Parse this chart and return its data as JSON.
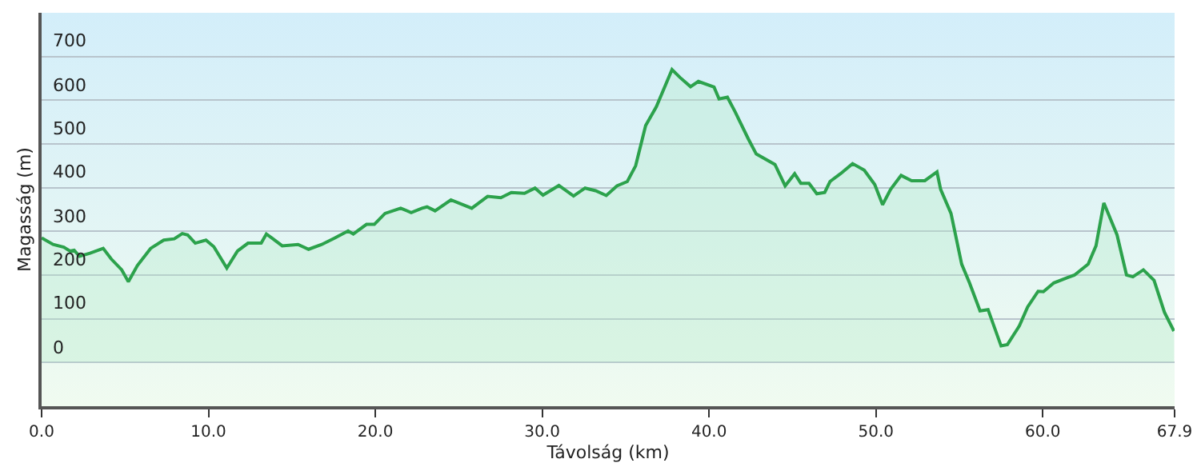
{
  "chart_data": {
    "type": "area",
    "xlabel": "Távolság (km)",
    "ylabel": "Magasság (m)",
    "xlim": [
      0,
      67.9
    ],
    "ylim": [
      -100,
      800
    ],
    "xticks": [
      {
        "value": 0,
        "label": "0.0"
      },
      {
        "value": 10,
        "label": "10.0"
      },
      {
        "value": 20,
        "label": "20.0"
      },
      {
        "value": 30,
        "label": "30.0"
      },
      {
        "value": 40,
        "label": "40.0"
      },
      {
        "value": 50,
        "label": "50.0"
      },
      {
        "value": 60,
        "label": "60.0"
      },
      {
        "value": 67.9,
        "label": "67.9"
      }
    ],
    "yticks": [
      0,
      100,
      200,
      300,
      400,
      500,
      600,
      700
    ],
    "grid": "y",
    "marker": "none",
    "line_style": "solid",
    "x": [
      0,
      0.69,
      1.33,
      1.7,
      1.95,
      2.27,
      2.9,
      3.69,
      4.17,
      4.8,
      5.2,
      5.74,
      6.53,
      7.32,
      7.95,
      8.43,
      8.75,
      9.21,
      9.85,
      10.32,
      11.1,
      11.74,
      12.37,
      13.16,
      13.47,
      13.8,
      14.42,
      15.37,
      16,
      16.79,
      17.58,
      18.37,
      18.68,
      19.47,
      19.94,
      20.58,
      21.52,
      22.15,
      22.8,
      23.1,
      23.58,
      24.53,
      25.78,
      26.73,
      27.52,
      28.15,
      28.94,
      29.57,
      30.05,
      31,
      31.88,
      32.57,
      33.2,
      33.84,
      34.48,
      35.1,
      35.6,
      36.2,
      36.84,
      37.78,
      38.26,
      38.89,
      39.36,
      40.3,
      40.6,
      41.1,
      41.57,
      42.36,
      42.83,
      43.95,
      44.56,
      45.13,
      45.5,
      45.99,
      46.46,
      46.93,
      47.25,
      47.88,
      48.6,
      49.3,
      49.93,
      50.4,
      50.88,
      51.51,
      52.14,
      52.93,
      53.66,
      53.88,
      54.5,
      55.14,
      55.61,
      56.24,
      56.72,
      57.5,
      57.88,
      58.6,
      59.09,
      59.72,
      60.04,
      60.66,
      61.45,
      61.9,
      62.72,
      63.19,
      63.66,
      64.45,
      65.02,
      65.4,
      66.03,
      66.67,
      67.29,
      67.86
    ],
    "series": [
      {
        "color": "#2ca24c",
        "values": [
          285,
          270,
          264,
          255,
          257,
          243,
          250,
          261,
          237,
          212,
          185,
          222,
          261,
          280,
          283,
          295,
          292,
          273,
          280,
          265,
          216,
          255,
          273,
          273,
          294,
          285,
          267,
          270,
          259,
          270,
          285,
          301,
          294,
          316,
          316,
          341,
          353,
          343,
          353,
          356,
          347,
          372,
          353,
          380,
          377,
          389,
          387,
          399,
          383,
          405,
          381,
          399,
          393,
          382,
          404,
          414,
          450,
          542,
          585,
          670,
          652,
          631,
          643,
          630,
          603,
          607,
          573,
          511,
          477,
          453,
          404,
          432,
          410,
          410,
          386,
          389,
          414,
          432,
          455,
          440,
          407,
          361,
          396,
          428,
          416,
          416,
          436,
          396,
          341,
          225,
          182,
          118,
          121,
          38,
          41,
          84,
          127,
          163,
          162,
          182,
          194,
          200,
          225,
          267,
          365,
          292,
          200,
          196,
          212,
          188,
          115,
          72
        ]
      }
    ]
  }
}
